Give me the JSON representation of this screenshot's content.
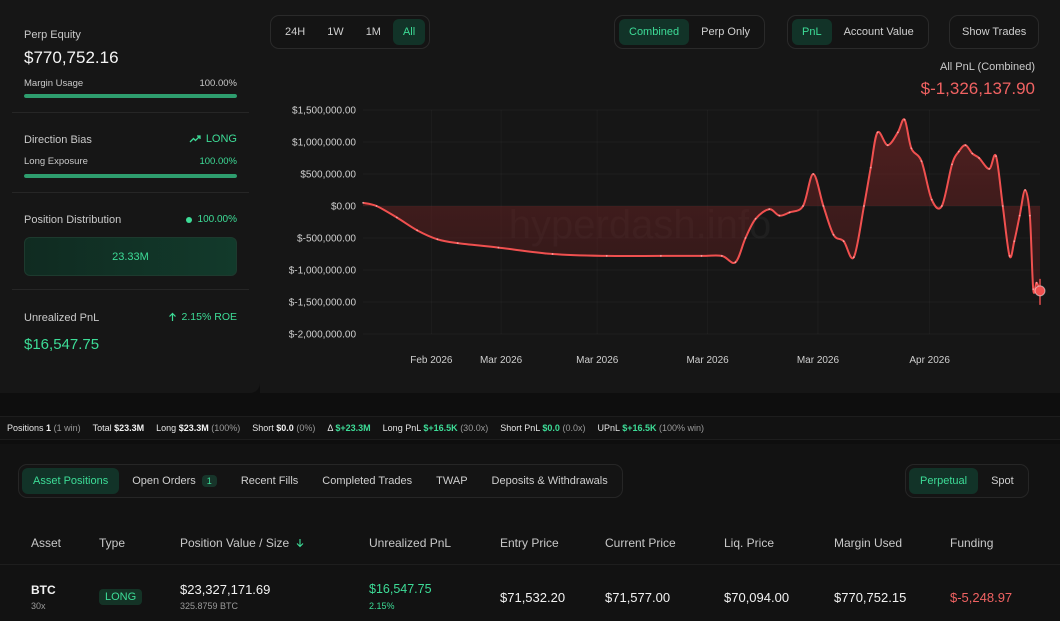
{
  "left": {
    "perp_equity_label": "Perp Equity",
    "perp_equity_value": "$770,752.16",
    "margin_usage_label": "Margin Usage",
    "margin_usage_value": "100.00%",
    "margin_usage_fraction": 1.0,
    "direction_bias_label": "Direction Bias",
    "direction_bias_value": "LONG",
    "long_exposure_label": "Long Exposure",
    "long_exposure_value": "100.00%",
    "long_exposure_fraction": 1.0,
    "position_distribution_label": "Position Distribution",
    "position_distribution_value": "100.00%",
    "distribution_amount": "23.33M",
    "unrealized_pnl_label": "Unrealized PnL",
    "unrealized_roe": "2.15% ROE",
    "unrealized_pnl_value": "$16,547.75"
  },
  "chart_controls": {
    "ranges": [
      "24H",
      "1W",
      "1M",
      "All"
    ],
    "active_range": "All",
    "modes": [
      "Combined",
      "Perp Only"
    ],
    "active_mode": "Combined",
    "metrics": [
      "PnL",
      "Account Value"
    ],
    "active_metric": "PnL",
    "show_trades_label": "Show Trades"
  },
  "chart_header": {
    "label": "All PnL (Combined)",
    "value": "$-1,326,137.90"
  },
  "watermark": "hyperdash.info",
  "chart_data": {
    "type": "area",
    "ylabel": "",
    "xlabel": "",
    "y_ticks": [
      "$1,500,000.00",
      "$1,000,000.00",
      "$500,000.00",
      "$0.00",
      "$-500,000.00",
      "$-1,000,000.00",
      "$-1,500,000.00",
      "$-2,000,000.00"
    ],
    "y_tick_values": [
      1500000,
      1000000,
      500000,
      0,
      -500000,
      -1000000,
      -1500000,
      -2000000
    ],
    "x_ticks": [
      "Feb 2026",
      "Mar 2026",
      "Mar 2026",
      "Mar 2026",
      "Mar 2026",
      "Apr 2026"
    ],
    "x_tick_positions": [
      0.101,
      0.204,
      0.346,
      0.509,
      0.672,
      0.837
    ],
    "ylim": [
      -2000000,
      1500000
    ],
    "xlim": [
      0,
      1
    ],
    "grid": true,
    "colors": {
      "line": "#f0504f",
      "fill_positive": "#7a2626",
      "fill_negative": "#5a1d1e",
      "marker": "#f0504f"
    },
    "series": [
      {
        "x": [
          0,
          0.02,
          0.05,
          0.08,
          0.11,
          0.14,
          0.2,
          0.28,
          0.36,
          0.44,
          0.5,
          0.53,
          0.55,
          0.565,
          0.58,
          0.6,
          0.615,
          0.63,
          0.65,
          0.665,
          0.68,
          0.695,
          0.71,
          0.725,
          0.74,
          0.75,
          0.76,
          0.775,
          0.79,
          0.8,
          0.81,
          0.825,
          0.84,
          0.855,
          0.87,
          0.88,
          0.89,
          0.9,
          0.91,
          0.925,
          0.935,
          0.945,
          0.955,
          0.962,
          0.97,
          0.978,
          0.985,
          0.99,
          0.995,
          1.0
        ],
        "y": [
          50000,
          0,
          -180000,
          -380000,
          -520000,
          -580000,
          -650000,
          -750000,
          -780000,
          -780000,
          -780000,
          -780000,
          -880000,
          -500000,
          -200000,
          -50000,
          -150000,
          -100000,
          0,
          500000,
          0,
          -450000,
          -550000,
          -800000,
          0,
          600000,
          1150000,
          950000,
          1150000,
          1350000,
          900000,
          700000,
          100000,
          0,
          650000,
          850000,
          950000,
          820000,
          750000,
          580000,
          780000,
          0,
          -780000,
          -550000,
          -150000,
          250000,
          -150000,
          -1300000,
          -1200000,
          -1326137.9
        ]
      }
    ]
  },
  "stats": {
    "positions_label": "Positions",
    "positions_value": "1",
    "positions_note": "(1 win)",
    "total_label": "Total",
    "total_value": "$23.3M",
    "long_label": "Long",
    "long_value": "$23.3M",
    "long_note": "(100%)",
    "short_label": "Short",
    "short_value": "$0.0",
    "short_note": "(0%)",
    "delta_label": "Δ",
    "delta_value": "$+23.3M",
    "long_pnl_label": "Long PnL",
    "long_pnl_value": "$+16.5K",
    "long_pnl_note": "(30.0x)",
    "short_pnl_label": "Short PnL",
    "short_pnl_value": "$0.0",
    "short_pnl_note": "(0.0x)",
    "upnl_label": "UPnL",
    "upnl_value": "$+16.5K",
    "upnl_note": "(100% win)"
  },
  "positions_tabs": {
    "tabs": [
      "Asset Positions",
      "Open Orders",
      "Recent Fills",
      "Completed Trades",
      "TWAP",
      "Deposits & Withdrawals"
    ],
    "open_orders_count": "1",
    "market_tabs": [
      "Perpetual",
      "Spot"
    ]
  },
  "table": {
    "headers": [
      "Asset",
      "Type",
      "Position Value / Size",
      "Unrealized PnL",
      "Entry Price",
      "Current Price",
      "Liq. Price",
      "Margin Used",
      "Funding"
    ],
    "sort_icon": "arrow-down-icon",
    "rows": [
      {
        "asset": "BTC",
        "leverage": "30x",
        "type": "LONG",
        "position_value": "$23,327,171.69",
        "position_size": "325.8759 BTC",
        "unrealized_pnl": "$16,547.75",
        "unrealized_pct": "2.15%",
        "entry_price": "$71,532.20",
        "current_price": "$71,577.00",
        "liq_price": "$70,094.00",
        "margin_used": "$770,752.15",
        "funding": "$-5,248.97"
      }
    ]
  }
}
